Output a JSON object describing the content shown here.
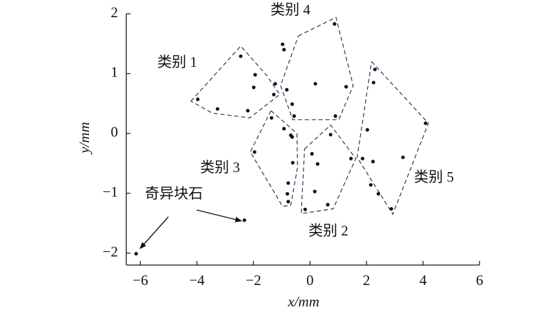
{
  "chart_data": {
    "type": "scatter",
    "x_label": "x/mm",
    "y_label": "y/mm",
    "xlim": [
      -6.5,
      6
    ],
    "ylim": [
      -2.2,
      2
    ],
    "xticks": [
      {
        "value": -6,
        "label": "−6"
      },
      {
        "value": -4,
        "label": "−4"
      },
      {
        "value": -2,
        "label": "−2"
      },
      0,
      2,
      4,
      6
    ],
    "yticks": [
      {
        "value": -2,
        "label": "−2"
      },
      {
        "value": -1,
        "label": "−1"
      },
      0,
      1,
      2
    ],
    "series": [
      {
        "name": "类别 1",
        "color": "#111111",
        "x": [
          -2.45,
          -1.94,
          -1.99,
          -1.28,
          -3.97,
          -3.27,
          -2.2
        ],
        "y": [
          1.29,
          0.98,
          0.77,
          0.65,
          0.57,
          0.41,
          0.38
        ],
        "boundary": {
          "x": [
            -4.21,
            -2.45,
            -1.53,
            -1.07,
            -2.13,
            -3.46
          ],
          "y": [
            0.54,
            1.46,
            0.97,
            0.65,
            0.26,
            0.34
          ]
        }
      },
      {
        "name": "类别 2",
        "color": "#111111",
        "x": [
          0.73,
          0.07,
          0.27,
          1.45,
          0.17,
          0.63,
          -0.17
        ],
        "y": [
          -0.02,
          -0.34,
          -0.51,
          -0.42,
          -0.97,
          -1.19,
          -1.27
        ],
        "boundary": {
          "x": [
            -0.19,
            0.73,
            1.62,
            0.82,
            -0.31
          ],
          "y": [
            -0.26,
            0.14,
            -0.42,
            -1.26,
            -1.34
          ]
        }
      },
      {
        "name": "类别 3",
        "color": "#111111",
        "x": [
          -1.36,
          -1.96,
          -0.92,
          -0.68,
          -0.63,
          -0.61,
          -0.77,
          -0.8,
          -0.77
        ],
        "y": [
          0.26,
          -0.31,
          0.08,
          -0.03,
          -0.06,
          -0.49,
          -0.83,
          -1.01,
          -1.14
        ],
        "boundary": {
          "x": [
            -1.38,
            -0.46,
            -0.44,
            -0.68,
            -0.97,
            -2.11
          ],
          "y": [
            0.38,
            0,
            -0.57,
            -1.2,
            -1.22,
            -0.31
          ]
        }
      },
      {
        "name": "类别 4",
        "color": "#111111",
        "x": [
          0.87,
          -0.97,
          -0.92,
          -0.82,
          -1.23,
          0.19,
          1.28,
          -0.63,
          -0.56,
          0.9
        ],
        "y": [
          1.83,
          1.49,
          1.4,
          0.73,
          0.83,
          0.83,
          0.78,
          0.49,
          0.29,
          0.29
        ],
        "boundary": {
          "x": [
            -0.41,
            0.92,
            1.53,
            1.02,
            -0.61,
            -1.04
          ],
          "y": [
            1.63,
            1.94,
            0.8,
            0.23,
            0.23,
            0.8
          ]
        }
      },
      {
        "name": "类别 5",
        "color": "#111111",
        "x": [
          2.3,
          2.25,
          2.03,
          1.86,
          2.23,
          3.29,
          4.09,
          2.15,
          2.42,
          2.88
        ],
        "y": [
          1.07,
          0.85,
          0.06,
          -0.42,
          -0.47,
          -0.4,
          0.17,
          -0.86,
          -1.01,
          -1.26
        ],
        "boundary": {
          "x": [
            2.18,
            4.19,
            2.93,
            1.67
          ],
          "y": [
            1.2,
            0.17,
            -1.35,
            -0.4
          ]
        }
      },
      {
        "name": "奇异块石",
        "color": "#111111",
        "x": [
          -6.15,
          -2.32
        ],
        "y": [
          -2.01,
          -1.45
        ]
      }
    ],
    "boundary_color": "#2b2f5a"
  }
}
